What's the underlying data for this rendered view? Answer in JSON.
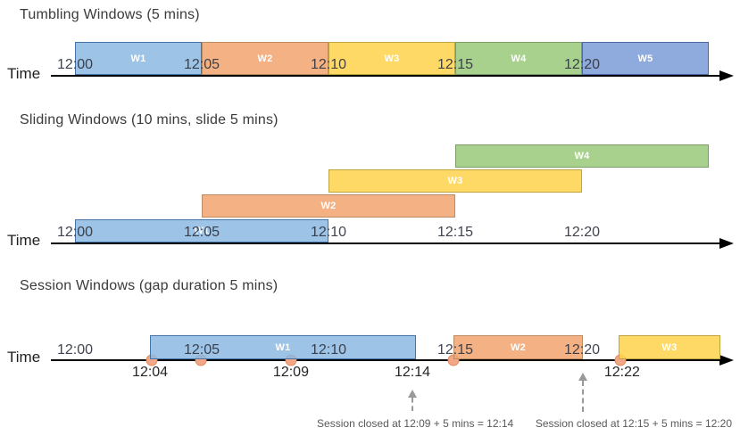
{
  "colors": {
    "blue": {
      "fill": "rgba(140,184,226,0.85)",
      "border": "#4573A5"
    },
    "orange": {
      "fill": "rgba(242,163,109,0.85)",
      "border": "#BE8C62"
    },
    "yellow": {
      "fill": "rgba(255,210,75,0.85)",
      "border": "#BFA440"
    },
    "green": {
      "fill": "rgba(154,201,122,0.85)",
      "border": "#7C9E66"
    },
    "periwinkle": {
      "fill": "rgba(123,155,214,0.85)",
      "border": "#4A69A5"
    },
    "event_dot_fill": "#F2A886",
    "event_dot_border": "#DF8A60",
    "axis": "#000000",
    "annotation": "#595959"
  },
  "sections": [
    {
      "id": "tumbling",
      "title": "Tumbling Windows (5 mins)",
      "time_label": "Time",
      "ticks": [
        {
          "label": "12:00",
          "t": 0
        },
        {
          "label": "12:05",
          "t": 5
        },
        {
          "label": "12:10",
          "t": 10
        },
        {
          "label": "12:15",
          "t": 15
        },
        {
          "label": "12:20",
          "t": 20
        }
      ],
      "windows": [
        {
          "label": "W1",
          "start": 0,
          "end": 5,
          "row": 0,
          "color": "blue"
        },
        {
          "label": "W2",
          "start": 5,
          "end": 10,
          "row": 0,
          "color": "orange"
        },
        {
          "label": "W3",
          "start": 10,
          "end": 15,
          "row": 0,
          "color": "yellow"
        },
        {
          "label": "W4",
          "start": 15,
          "end": 20,
          "row": 0,
          "color": "green"
        },
        {
          "label": "W5",
          "start": 20,
          "end": 25,
          "row": 0,
          "color": "periwinkle"
        }
      ]
    },
    {
      "id": "sliding",
      "title": "Sliding Windows (10 mins, slide 5 mins)",
      "time_label": "Time",
      "ticks": [
        {
          "label": "12:00",
          "t": 0
        },
        {
          "label": "12:05",
          "t": 5
        },
        {
          "label": "12:10",
          "t": 10
        },
        {
          "label": "12:15",
          "t": 15
        },
        {
          "label": "12:20",
          "t": 20
        }
      ],
      "windows": [
        {
          "label": "W1",
          "start": 0,
          "end": 10,
          "row": 0,
          "color": "blue"
        },
        {
          "label": "W2",
          "start": 5,
          "end": 15,
          "row": 1,
          "color": "orange"
        },
        {
          "label": "W3",
          "start": 10,
          "end": 20,
          "row": 2,
          "color": "yellow"
        },
        {
          "label": "W4",
          "start": 15,
          "end": 25,
          "row": 3,
          "color": "green"
        }
      ]
    },
    {
      "id": "session",
      "title": "Session Windows (gap duration 5 mins)",
      "time_label": "Time",
      "ticks": [
        {
          "label": "12:00",
          "t": 0
        },
        {
          "label": "12:05",
          "t": 5
        },
        {
          "label": "12:10",
          "t": 10
        },
        {
          "label": "12:15",
          "t": 15
        },
        {
          "label": "12:20",
          "t": 20
        }
      ],
      "windows": [
        {
          "label": "W1",
          "start": 2.96,
          "end": 13.45,
          "row": 0,
          "color": "blue"
        },
        {
          "label": "W2",
          "start": 14.93,
          "end": 20.04,
          "row": 0,
          "color": "orange"
        },
        {
          "label": "W3",
          "start": 21.44,
          "end": 25.46,
          "row": 0,
          "color": "yellow"
        }
      ],
      "events": [
        {
          "t": 3.03
        },
        {
          "t": 4.96
        },
        {
          "t": 8.52
        },
        {
          "t": 14.93
        },
        {
          "t": 21.51
        }
      ],
      "event_labels": [
        {
          "label": "12:04",
          "t": 2.96
        },
        {
          "label": "12:09",
          "t": 8.52
        },
        {
          "label": "12:14",
          "t": 13.31
        },
        {
          "label": "12:22",
          "t": 21.58
        }
      ],
      "close_arrows": [
        {
          "t": 13.31
        },
        {
          "t": 20.04
        }
      ],
      "annotations": [
        {
          "text": "Session closed at 12:09 + 5 mins = 12:14",
          "t": 13.42
        },
        {
          "text": "Session closed at 12:15 + 5 mins = 12:20",
          "t": 22.04
        }
      ]
    }
  ]
}
